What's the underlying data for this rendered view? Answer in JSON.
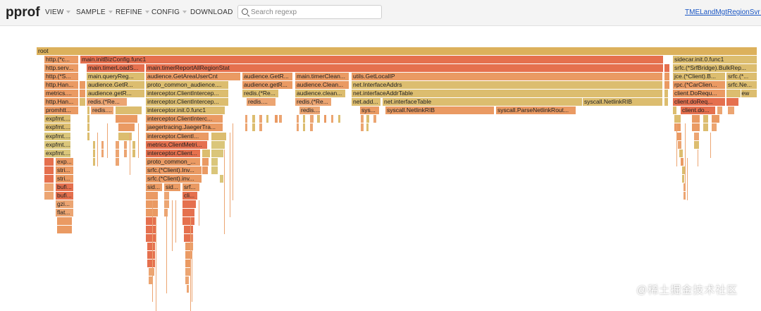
{
  "logo": "pprof",
  "menu": [
    {
      "label": "VIEW",
      "name": "menu-view",
      "caret": true
    },
    {
      "label": "SAMPLE",
      "name": "menu-sample",
      "caret": true
    },
    {
      "label": "REFINE",
      "name": "menu-refine",
      "caret": true
    },
    {
      "label": "CONFIG",
      "name": "menu-config",
      "caret": true
    },
    {
      "label": "DOWNLOAD",
      "name": "menu-download",
      "caret": false
    }
  ],
  "search": {
    "placeholder": "Search regexp",
    "value": ""
  },
  "profile_link": "TMELandMgtRegionSvr al",
  "watermark": "@稀土掘金技术社区",
  "colors": {
    "root": "#dcb15c",
    "red": "#e5704e",
    "orange": "#ea9a63",
    "peach": "#eca572",
    "tan": "#dcbd6f",
    "yellow": "#dac67a"
  },
  "flame_frames": [
    {
      "label": "root"
    },
    {
      "label": "http.(*c..."
    },
    {
      "label": "main.initBizConfig.func1"
    },
    {
      "label": "sidecar.init.0.func1"
    },
    {
      "label": "http.serv..."
    },
    {
      "label": "main.timerLoadS..."
    },
    {
      "label": "main.timerReportAllRegionStat"
    },
    {
      "label": "srfc.(*SrfBridge).BulkRep..."
    },
    {
      "label": "http.(*S..."
    },
    {
      "label": "main.queryReg..."
    },
    {
      "label": "audience.GetAreaUserCnt"
    },
    {
      "label": "audience.GetR..."
    },
    {
      "label": "main.timerClean..."
    },
    {
      "label": "utils.GetLocalIP"
    },
    {
      "label": "jce.(*Client).B..."
    },
    {
      "label": "srfc.(*..."
    },
    {
      "label": "http.Han..."
    },
    {
      "label": "audience.GetR..."
    },
    {
      "label": "proto_common_audience...."
    },
    {
      "label": "audience.getR..."
    },
    {
      "label": "audience.Clean..."
    },
    {
      "label": "net.InterfaceAddrs"
    },
    {
      "label": "rpc.(*CarClien..."
    },
    {
      "label": "srfc.Ne..."
    },
    {
      "label": "metrics...."
    },
    {
      "label": "audience.getR..."
    },
    {
      "label": "interceptor.ClientIntercep..."
    },
    {
      "label": "redis.(*Re..."
    },
    {
      "label": "audience.clean..."
    },
    {
      "label": "net.interfaceAddrTable"
    },
    {
      "label": "client.DoRequ..."
    },
    {
      "label": "jce.New"
    },
    {
      "label": "http.Han..."
    },
    {
      "label": "redis.(*Re..."
    },
    {
      "label": "interceptor.ClientIntercep..."
    },
    {
      "label": "redis...."
    },
    {
      "label": "redis.(*Re..."
    },
    {
      "label": "net.add..."
    },
    {
      "label": "net.interfaceTable"
    },
    {
      "label": "syscall.NetlinkRIB"
    },
    {
      "label": "client.doReq..."
    },
    {
      "label": "promhtt..."
    },
    {
      "label": "redis...."
    },
    {
      "label": "interceptor.init.0.func1"
    },
    {
      "label": "redis...."
    },
    {
      "label": "sys..."
    },
    {
      "label": "syscall.NetlinkRIB"
    },
    {
      "label": "syscall.ParseNetlinkRout..."
    },
    {
      "label": "client.do..."
    },
    {
      "label": "expfmt...."
    },
    {
      "label": "interceptor.ClientInterc..."
    },
    {
      "label": "expfmt...."
    },
    {
      "label": "jaegertracing.JaegerTra..."
    },
    {
      "label": "expfmt...."
    },
    {
      "label": "interceptor.ClientI..."
    },
    {
      "label": "expfmt...."
    },
    {
      "label": "metrics.ClientMetri..."
    },
    {
      "label": "expfmt...."
    },
    {
      "label": "interceptor.Client..."
    },
    {
      "label": "exp..."
    },
    {
      "label": "proto_common_..."
    },
    {
      "label": "stri..."
    },
    {
      "label": "srfc.(*Client).Inv..."
    },
    {
      "label": "stri..."
    },
    {
      "label": "srfc.(*Client).inv..."
    },
    {
      "label": "bufi..."
    },
    {
      "label": "sid..."
    },
    {
      "label": "sid..."
    },
    {
      "label": "srf..."
    },
    {
      "label": "bufi..."
    },
    {
      "label": "cli..."
    },
    {
      "label": "gzi..."
    },
    {
      "label": "flat..."
    }
  ]
}
